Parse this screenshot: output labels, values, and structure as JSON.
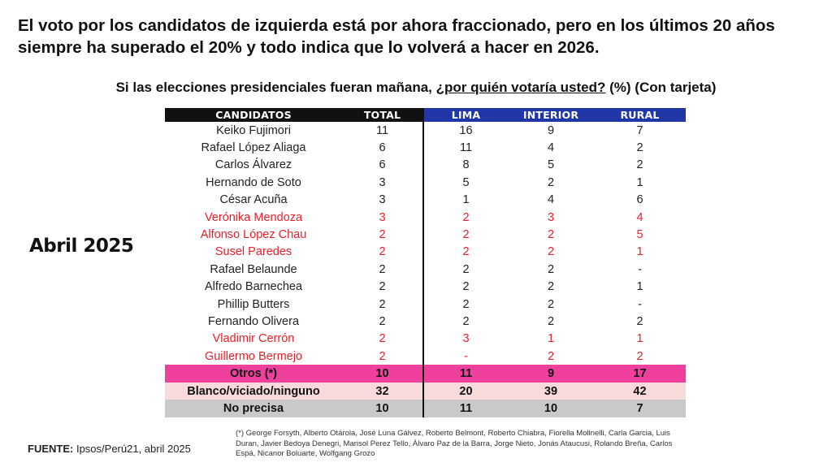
{
  "headline": "El voto por los candidatos de izquierda está por ahora fraccionado, pero en los últimos 20 años siempre ha superado el 20% y todo indica que lo volverá a hacer en 2026.",
  "subtitle": {
    "prefix": "Si las elecciones presidenciales fueran mañana,",
    "question": "¿por quién votaría usted?",
    "suffix": "(%) (Con tarjeta)"
  },
  "period_label": "Abril 2025",
  "source": {
    "label": "FUENTE:",
    "text": "Ipsos/Perú21, abril 2025"
  },
  "footnote": "(*) George Forsyth, Alberto Otárola, José Luna Gálvez, Roberto Belmont, Roberto Chiabra, Fiorella Molinelli, Carla Garcia, Luis Duran, Javier Bedoya Denegri, Marisol Perez Tello, Álvaro Paz de la Barra, Jorge Nieto, Jonás Ataucusi, Rolando Breña, Carlos Espá, Nicanor Boluarte, Wolfgang Grozo",
  "colors": {
    "left_candidate_text": "#e8202a",
    "header_dark": "#111111",
    "header_blue": "#2137a8",
    "otros_row": "#f0409d",
    "blanco_row": "#f8dada",
    "no_precisa_row": "#c9c9c9"
  },
  "chart_data": {
    "type": "table",
    "columns": [
      "CANDIDATOS",
      "TOTAL",
      "LIMA",
      "INTERIOR",
      "RURAL"
    ],
    "rows": [
      {
        "candidate": "Keiko Fujimori",
        "values": [
          "11",
          "16",
          "9",
          "7"
        ],
        "style": "normal"
      },
      {
        "candidate": "Rafael López Aliaga",
        "values": [
          "6",
          "11",
          "4",
          "2"
        ],
        "style": "normal"
      },
      {
        "candidate": "Carlos Álvarez",
        "values": [
          "6",
          "8",
          "5",
          "2"
        ],
        "style": "normal"
      },
      {
        "candidate": "Hernando de Soto",
        "values": [
          "3",
          "5",
          "2",
          "1"
        ],
        "style": "normal"
      },
      {
        "candidate": "César Acuña",
        "values": [
          "3",
          "1",
          "4",
          "6"
        ],
        "style": "normal"
      },
      {
        "candidate": "Verónika Mendoza",
        "values": [
          "3",
          "2",
          "3",
          "4"
        ],
        "style": "red"
      },
      {
        "candidate": "Alfonso López Chau",
        "values": [
          "2",
          "2",
          "2",
          "5"
        ],
        "style": "red"
      },
      {
        "candidate": "Susel Paredes",
        "values": [
          "2",
          "2",
          "2",
          "1"
        ],
        "style": "red"
      },
      {
        "candidate": "Rafael Belaunde",
        "values": [
          "2",
          "2",
          "2",
          "-"
        ],
        "style": "normal"
      },
      {
        "candidate": "Alfredo Barnechea",
        "values": [
          "2",
          "2",
          "2",
          "1"
        ],
        "style": "normal"
      },
      {
        "candidate": "Phillip Butters",
        "values": [
          "2",
          "2",
          "2",
          "-"
        ],
        "style": "normal"
      },
      {
        "candidate": "Fernando Olivera",
        "values": [
          "2",
          "2",
          "2",
          "2"
        ],
        "style": "normal"
      },
      {
        "candidate": "Vladimir Cerrón",
        "values": [
          "2",
          "3",
          "1",
          "1"
        ],
        "style": "red"
      },
      {
        "candidate": "Guillermo Bermejo",
        "values": [
          "2",
          "-",
          "2",
          "2"
        ],
        "style": "red"
      },
      {
        "candidate": "Otros (*)",
        "values": [
          "10",
          "11",
          "9",
          "17"
        ],
        "style": "otros"
      },
      {
        "candidate": "Blanco/viciado/ninguno",
        "values": [
          "32",
          "20",
          "39",
          "42"
        ],
        "style": "blanco"
      },
      {
        "candidate": "No precisa",
        "values": [
          "10",
          "11",
          "10",
          "7"
        ],
        "style": "noprecisa"
      }
    ]
  }
}
